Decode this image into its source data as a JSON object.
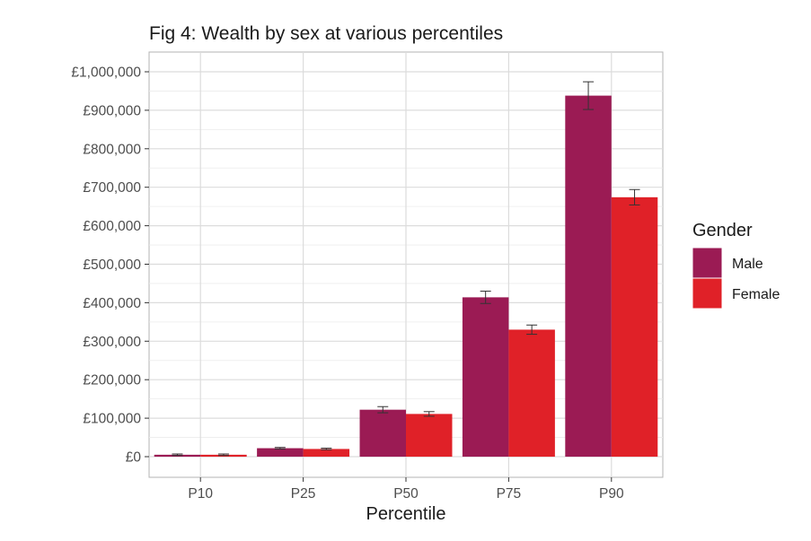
{
  "chart_data": {
    "type": "bar",
    "title": "Fig 4: Wealth by sex at various percentiles",
    "xlabel": "Percentile",
    "ylabel": "",
    "categories": [
      "P10",
      "P25",
      "P50",
      "P75",
      "P90"
    ],
    "series": [
      {
        "name": "Male",
        "color": "#9b1b54",
        "values": [
          5000,
          22000,
          122000,
          414000,
          938000
        ],
        "error_low": [
          3000,
          20000,
          114000,
          398000,
          902000
        ],
        "error_high": [
          7000,
          24000,
          130000,
          430000,
          974000
        ]
      },
      {
        "name": "Female",
        "color": "#e02128",
        "values": [
          5000,
          20000,
          111000,
          330000,
          674000
        ],
        "error_low": [
          3000,
          18000,
          105000,
          318000,
          654000
        ],
        "error_high": [
          7000,
          22000,
          117000,
          342000,
          694000
        ]
      }
    ],
    "ylim": [
      0,
      1000000
    ],
    "y_ticks": [
      0,
      100000,
      200000,
      300000,
      400000,
      500000,
      600000,
      700000,
      800000,
      900000,
      1000000
    ],
    "y_tick_labels": [
      "£0",
      "£100,000",
      "£200,000",
      "£300,000",
      "£400,000",
      "£500,000",
      "£600,000",
      "£700,000",
      "£800,000",
      "£900,000",
      "£1,000,000"
    ],
    "grid": true,
    "legend": {
      "title": "Gender",
      "position": "right",
      "entries": [
        "Male",
        "Female"
      ]
    }
  }
}
